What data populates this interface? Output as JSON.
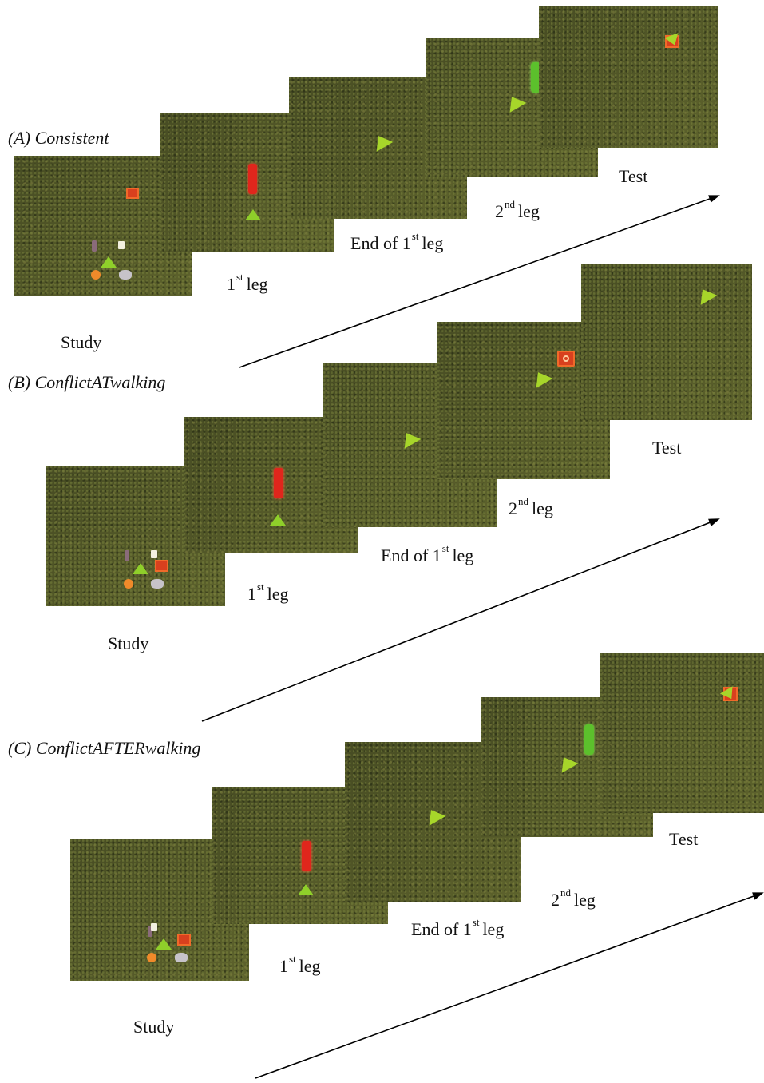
{
  "sections": [
    {
      "title": "(A) Consistent",
      "labels": {
        "study": "Study",
        "leg1_num": "1",
        "leg1_sup": "st",
        "leg1_word": "leg",
        "end1_prefix": "End of 1",
        "end1_sup": "st",
        "end1_word": "leg",
        "leg2_num": "2",
        "leg2_sup": "nd",
        "leg2_word": "leg",
        "test": "Test"
      }
    },
    {
      "title": "(B) ConflictATwalking",
      "labels": {
        "study": "Study",
        "leg1_num": "1",
        "leg1_sup": "st",
        "leg1_word": "leg",
        "end1_prefix": "End of 1",
        "end1_sup": "st",
        "end1_word": "leg",
        "leg2_num": "2",
        "leg2_sup": "nd",
        "leg2_word": "leg",
        "test": "Test"
      }
    },
    {
      "title": "(C) ConflictAFTERwalking",
      "labels": {
        "study": "Study",
        "leg1_num": "1",
        "leg1_sup": "st",
        "leg1_word": "leg",
        "end1_prefix": "End of 1",
        "end1_sup": "st",
        "end1_word": "leg",
        "leg2_num": "2",
        "leg2_sup": "nd",
        "leg2_word": "leg",
        "test": "Test"
      }
    }
  ],
  "colors": {
    "grass": "#4f5525",
    "marker_red": "#e0261c",
    "marker_green": "#5cc02c",
    "avatar_yellow_green": "#8fcf2a",
    "arrow": "#000000"
  }
}
